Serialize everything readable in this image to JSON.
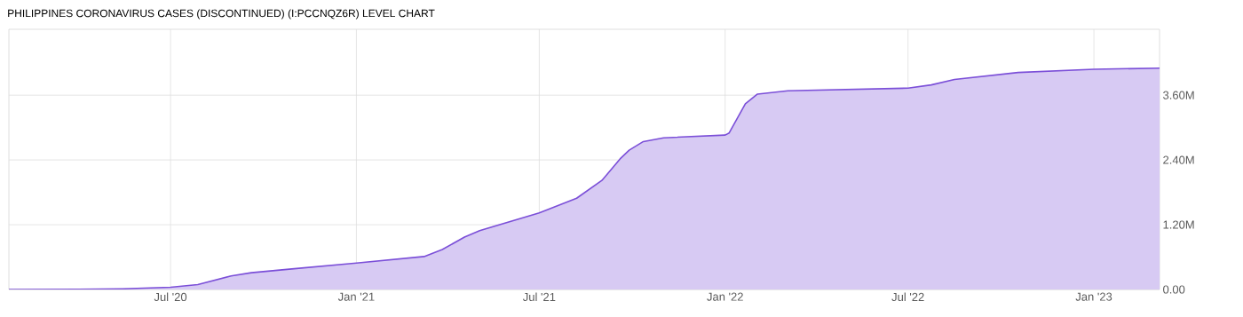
{
  "chart_data": {
    "type": "area",
    "title": "PHILIPPINES CORONAVIRUS CASES (DISCONTINUED) (I:PCCNQZ6R) LEVEL CHART",
    "x": [
      "2020-01-23",
      "2020-04-01",
      "2020-05-15",
      "2020-07-01",
      "2020-07-28",
      "2020-08-30",
      "2020-09-19",
      "2020-10-29",
      "2021-01-01",
      "2021-03-09",
      "2021-03-27",
      "2021-04-18",
      "2021-05-03",
      "2021-07-01",
      "2021-08-07",
      "2021-09-01",
      "2021-09-19",
      "2021-09-28",
      "2021-10-12",
      "2021-11-01",
      "2022-01-01",
      "2022-01-05",
      "2022-01-21",
      "2022-02-02",
      "2022-03-04",
      "2022-07-01",
      "2022-07-24",
      "2022-08-16",
      "2022-10-18",
      "2023-01-01",
      "2023-03-07"
    ],
    "series": [
      {
        "color": "#7b4fd8",
        "values": [
          0,
          3000,
          12000,
          40000,
          90000,
          250000,
          310000,
          380000,
          490000,
          610000,
          740000,
          970000,
          1090000,
          1420000,
          1690000,
          2020000,
          2420000,
          2580000,
          2740000,
          2810000,
          2860000,
          2900000,
          3440000,
          3620000,
          3680000,
          3730000,
          3790000,
          3890000,
          4020000,
          4080000,
          4100000
        ]
      }
    ],
    "xlim": [
      "2020-01-23",
      "2023-03-07"
    ],
    "xticks": [
      {
        "value": "2020-07-01",
        "label": "Jul '20"
      },
      {
        "value": "2021-01-01",
        "label": "Jan '21"
      },
      {
        "value": "2021-07-01",
        "label": "Jul '21"
      },
      {
        "value": "2022-01-01",
        "label": "Jan '22"
      },
      {
        "value": "2022-07-01",
        "label": "Jul '22"
      },
      {
        "value": "2023-01-01",
        "label": "Jan '23"
      }
    ],
    "ylim": [
      0,
      4820000
    ],
    "yticks": [
      {
        "value": 0,
        "label": "0.00"
      },
      {
        "value": 1200000,
        "label": "1.20M"
      },
      {
        "value": 2400000,
        "label": "2.40M"
      },
      {
        "value": 3600000,
        "label": "3.60M"
      }
    ],
    "grid": true
  }
}
